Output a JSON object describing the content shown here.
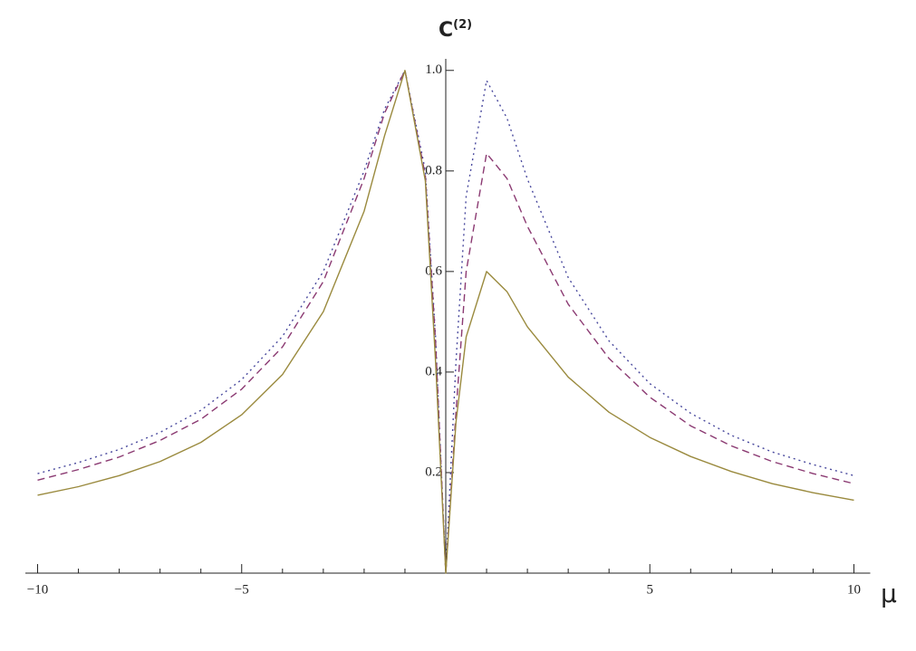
{
  "chart_data": {
    "type": "line",
    "x_label": "μ",
    "y_label": {
      "text": "C",
      "superscript": "(2)"
    },
    "x": [
      -10,
      -9,
      -8,
      -7,
      -6,
      -5,
      -4,
      -3,
      -2,
      -1.5,
      -1,
      -0.5,
      -0.25,
      0,
      0.25,
      0.5,
      1,
      1.5,
      2,
      3,
      4,
      5,
      6,
      7,
      8,
      9,
      10
    ],
    "series": [
      {
        "color": "#4a4a9e",
        "dash": "2,4",
        "values": [
          0.198,
          0.22,
          0.246,
          0.28,
          0.324,
          0.385,
          0.471,
          0.6,
          0.8,
          0.923,
          1,
          0.8,
          0.47,
          0,
          0.42,
          0.75,
          0.98,
          0.905,
          0.784,
          0.588,
          0.462,
          0.377,
          0.318,
          0.274,
          0.241,
          0.216,
          0.194
        ]
      },
      {
        "color": "#8b3a72",
        "dash": "8,5",
        "values": [
          0.185,
          0.206,
          0.231,
          0.264,
          0.306,
          0.366,
          0.45,
          0.58,
          0.785,
          0.915,
          1,
          0.79,
          0.46,
          0,
          0.32,
          0.6,
          0.835,
          0.785,
          0.69,
          0.535,
          0.427,
          0.35,
          0.293,
          0.253,
          0.222,
          0.198,
          0.178
        ]
      },
      {
        "color": "#9a8a3e",
        "dash": "none",
        "values": [
          0.155,
          0.172,
          0.194,
          0.222,
          0.26,
          0.315,
          0.395,
          0.52,
          0.72,
          0.87,
          1,
          0.78,
          0.42,
          0,
          0.3,
          0.47,
          0.6,
          0.56,
          0.49,
          0.39,
          0.32,
          0.27,
          0.232,
          0.202,
          0.178,
          0.16,
          0.145
        ]
      }
    ],
    "xlim": [
      -10.3,
      10.4
    ],
    "ylim": [
      0,
      1.023
    ],
    "xticks": [
      {
        "value": -10,
        "label": "−10"
      },
      {
        "value": -5,
        "label": "−5"
      },
      5,
      10
    ],
    "x_minor_ticks": [
      -9,
      -8,
      -7,
      -6,
      -4,
      -3,
      -2,
      -1,
      1,
      2,
      3,
      4,
      6,
      7,
      8,
      9
    ],
    "yticks": [
      0.2,
      0.4,
      0.6,
      0.8,
      {
        "value": 1,
        "label": "1.0"
      }
    ]
  }
}
